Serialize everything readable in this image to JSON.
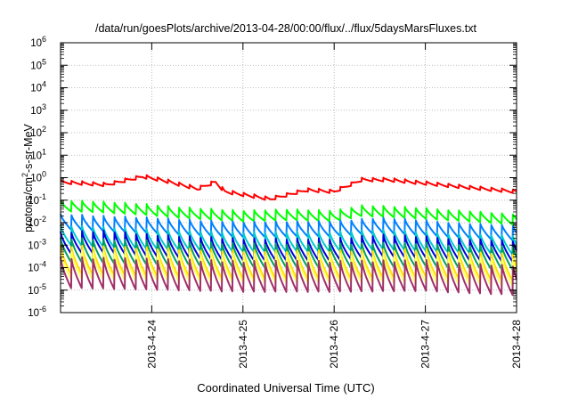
{
  "chart_data": {
    "type": "line",
    "title": "/data/run/goesPlots/archive/2013-04-28/00:00/flux/../flux/5daysMarsFluxes.txt",
    "xlabel": "Coordinated Universal Time (UTC)",
    "ylabel_base": "protons/cm",
    "ylabel_sup": "2",
    "ylabel_tail": "-s-sr-MeV",
    "xlim": [
      0,
      5.0
    ],
    "ylim_exp": [
      -6,
      6
    ],
    "y_scale": "log",
    "grid": true,
    "x_ticks": [
      {
        "x": 1.0,
        "label": "2013-4-24"
      },
      {
        "x": 2.0,
        "label": "2013-4-25"
      },
      {
        "x": 3.0,
        "label": "2013-4-26"
      },
      {
        "x": 4.0,
        "label": "2013-4-27"
      },
      {
        "x": 5.0,
        "label": "2013-4-28"
      }
    ],
    "y_ticks": [
      {
        "exp": 6,
        "label": "6"
      },
      {
        "exp": 5,
        "label": "5"
      },
      {
        "exp": 4,
        "label": "4"
      },
      {
        "exp": 3,
        "label": "3"
      },
      {
        "exp": 2,
        "label": "2"
      },
      {
        "exp": 1,
        "label": "1"
      },
      {
        "exp": 0,
        "label": "0"
      },
      {
        "exp": -1,
        "label": "-1"
      },
      {
        "exp": -2,
        "label": "-2"
      },
      {
        "exp": -3,
        "label": "-3"
      },
      {
        "exp": -4,
        "label": "-4"
      },
      {
        "exp": -5,
        "label": "-5"
      },
      {
        "exp": -6,
        "label": "-6"
      }
    ],
    "series": [
      {
        "color": "#ff0000",
        "sawtooth_period_days": 0.118,
        "drop_decades": 0.17,
        "peaks": [
          [
            0.0,
            0.8
          ],
          [
            0.5,
            0.6
          ],
          [
            0.9,
            1.4
          ],
          [
            1.1,
            1.0
          ],
          [
            1.5,
            0.4
          ],
          [
            1.7,
            0.8
          ],
          [
            1.8,
            0.3
          ],
          [
            2.3,
            0.14
          ],
          [
            2.7,
            0.35
          ],
          [
            3.0,
            0.3
          ],
          [
            3.3,
            1.0
          ],
          [
            3.6,
            1.0
          ],
          [
            4.0,
            0.7
          ],
          [
            4.5,
            0.45
          ],
          [
            5.0,
            0.3
          ]
        ]
      },
      {
        "color": "#00ff00",
        "sawtooth_period_days": 0.118,
        "drop_decades": 0.5,
        "peaks": [
          [
            0.0,
            0.1
          ],
          [
            0.4,
            0.09
          ],
          [
            0.9,
            0.07
          ],
          [
            1.3,
            0.05
          ],
          [
            2.0,
            0.035
          ],
          [
            2.5,
            0.04
          ],
          [
            3.0,
            0.035
          ],
          [
            3.3,
            0.06
          ],
          [
            3.6,
            0.055
          ],
          [
            4.0,
            0.045
          ],
          [
            4.5,
            0.035
          ],
          [
            5.0,
            0.025
          ]
        ]
      },
      {
        "color": "#0080ff",
        "sawtooth_period_days": 0.118,
        "drop_decades": 0.7,
        "peaks": [
          [
            0.0,
            0.025
          ],
          [
            0.5,
            0.02
          ],
          [
            1.0,
            0.017
          ],
          [
            1.5,
            0.013
          ],
          [
            2.0,
            0.011
          ],
          [
            3.0,
            0.012
          ],
          [
            3.5,
            0.017
          ],
          [
            4.0,
            0.013
          ],
          [
            4.5,
            0.01
          ],
          [
            5.0,
            0.008
          ]
        ]
      },
      {
        "color": "#00cccc",
        "sawtooth_period_days": 0.118,
        "drop_decades": 0.9,
        "peaks": [
          [
            0.0,
            0.008
          ],
          [
            1.0,
            0.005
          ],
          [
            2.0,
            0.0038
          ],
          [
            3.0,
            0.004
          ],
          [
            3.5,
            0.005
          ],
          [
            4.0,
            0.004
          ],
          [
            5.0,
            0.003
          ]
        ]
      },
      {
        "color": "#0000dd",
        "sawtooth_period_days": 0.118,
        "drop_decades": 1.0,
        "peaks": [
          [
            0.0,
            0.004
          ],
          [
            0.5,
            0.0045
          ],
          [
            1.0,
            0.003
          ],
          [
            2.0,
            0.002
          ],
          [
            3.0,
            0.002
          ],
          [
            3.5,
            0.003
          ],
          [
            4.0,
            0.0025
          ],
          [
            5.0,
            0.0018
          ]
        ]
      },
      {
        "color": "#00a060",
        "sawtooth_period_days": 0.118,
        "drop_decades": 1.1,
        "peaks": [
          [
            0.0,
            0.0022
          ],
          [
            1.0,
            0.0016
          ],
          [
            2.0,
            0.0012
          ],
          [
            3.0,
            0.0012
          ],
          [
            4.0,
            0.0013
          ],
          [
            5.0,
            0.001
          ]
        ]
      },
      {
        "color": "#ffe000",
        "sawtooth_period_days": 0.118,
        "drop_decades": 1.3,
        "peaks": [
          [
            0.0,
            0.001
          ],
          [
            1.0,
            0.0008
          ],
          [
            2.0,
            0.0006
          ],
          [
            3.0,
            0.0006
          ],
          [
            4.0,
            0.0007
          ],
          [
            5.0,
            0.0005
          ]
        ]
      },
      {
        "color": "#ffff66",
        "sawtooth_period_days": 0.118,
        "drop_decades": 1.3,
        "peaks": [
          [
            0.0,
            0.0006
          ],
          [
            1.0,
            0.0005
          ],
          [
            2.0,
            0.0004
          ],
          [
            3.0,
            0.0004
          ],
          [
            4.0,
            0.0004
          ],
          [
            5.0,
            0.0003
          ]
        ]
      },
      {
        "color": "#a0306a",
        "sawtooth_period_days": 0.118,
        "drop_decades": 1.4,
        "peaks": [
          [
            0.0,
            0.0003
          ],
          [
            1.0,
            0.00025
          ],
          [
            2.0,
            0.0002
          ],
          [
            3.0,
            0.0002
          ],
          [
            4.0,
            0.00022
          ],
          [
            5.0,
            0.00015
          ]
        ]
      }
    ]
  }
}
